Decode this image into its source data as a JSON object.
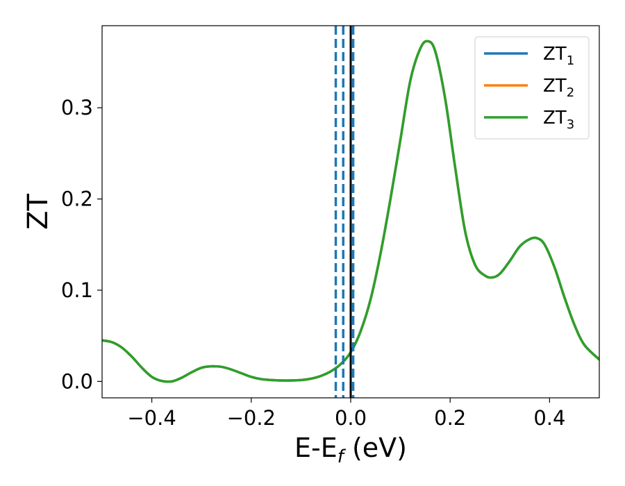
{
  "chart_data": {
    "type": "line",
    "xlabel": "E-E",
    "xlabel_sub": "f",
    "xlabel_unit": " (eV)",
    "ylabel": "ZT",
    "xlim": [
      -0.5,
      0.5
    ],
    "ylim": [
      -0.018,
      0.39
    ],
    "xticks": [
      -0.4,
      -0.2,
      0.0,
      0.2,
      0.4
    ],
    "xtick_labels": [
      "−0.4",
      "−0.2",
      "0.0",
      "0.2",
      "0.4"
    ],
    "yticks": [
      0.0,
      0.1,
      0.2,
      0.3
    ],
    "ytick_labels": [
      "0.0",
      "0.1",
      "0.2",
      "0.3"
    ],
    "grid": false,
    "legend_position": "top-right",
    "series": [
      {
        "name": "ZT",
        "sub": "1",
        "color": "#1f77b4"
      },
      {
        "name": "ZT",
        "sub": "2",
        "color": "#ff7f0e"
      },
      {
        "name": "ZT",
        "sub": "3",
        "color": "#2ca02c"
      }
    ],
    "x": [
      -0.5,
      -0.48,
      -0.46,
      -0.44,
      -0.42,
      -0.4,
      -0.38,
      -0.36,
      -0.34,
      -0.32,
      -0.3,
      -0.28,
      -0.26,
      -0.24,
      -0.22,
      -0.2,
      -0.18,
      -0.16,
      -0.14,
      -0.12,
      -0.1,
      -0.08,
      -0.06,
      -0.04,
      -0.02,
      0.0,
      0.02,
      0.04,
      0.06,
      0.08,
      0.1,
      0.12,
      0.14,
      0.155,
      0.17,
      0.19,
      0.21,
      0.23,
      0.25,
      0.27,
      0.285,
      0.3,
      0.32,
      0.34,
      0.36,
      0.375,
      0.39,
      0.41,
      0.43,
      0.45,
      0.47,
      0.5
    ],
    "y": [
      0.045,
      0.043,
      0.037,
      0.027,
      0.015,
      0.005,
      0.0005,
      0.0,
      0.004,
      0.01,
      0.015,
      0.0165,
      0.016,
      0.013,
      0.009,
      0.005,
      0.0025,
      0.0015,
      0.001,
      0.001,
      0.0015,
      0.003,
      0.006,
      0.011,
      0.019,
      0.032,
      0.055,
      0.09,
      0.14,
      0.2,
      0.265,
      0.33,
      0.365,
      0.373,
      0.362,
      0.31,
      0.235,
      0.165,
      0.128,
      0.116,
      0.114,
      0.118,
      0.132,
      0.148,
      0.156,
      0.157,
      0.15,
      0.125,
      0.092,
      0.062,
      0.04,
      0.024
    ],
    "vlines": [
      {
        "x": -0.03,
        "color": "#1f77b4",
        "style": "dashed"
      },
      {
        "x": -0.015,
        "color": "#1f77b4",
        "style": "dashed"
      },
      {
        "x": 0.0,
        "color": "#000000",
        "style": "solid"
      },
      {
        "x": 0.005,
        "color": "#1f77b4",
        "style": "dashed"
      }
    ]
  }
}
